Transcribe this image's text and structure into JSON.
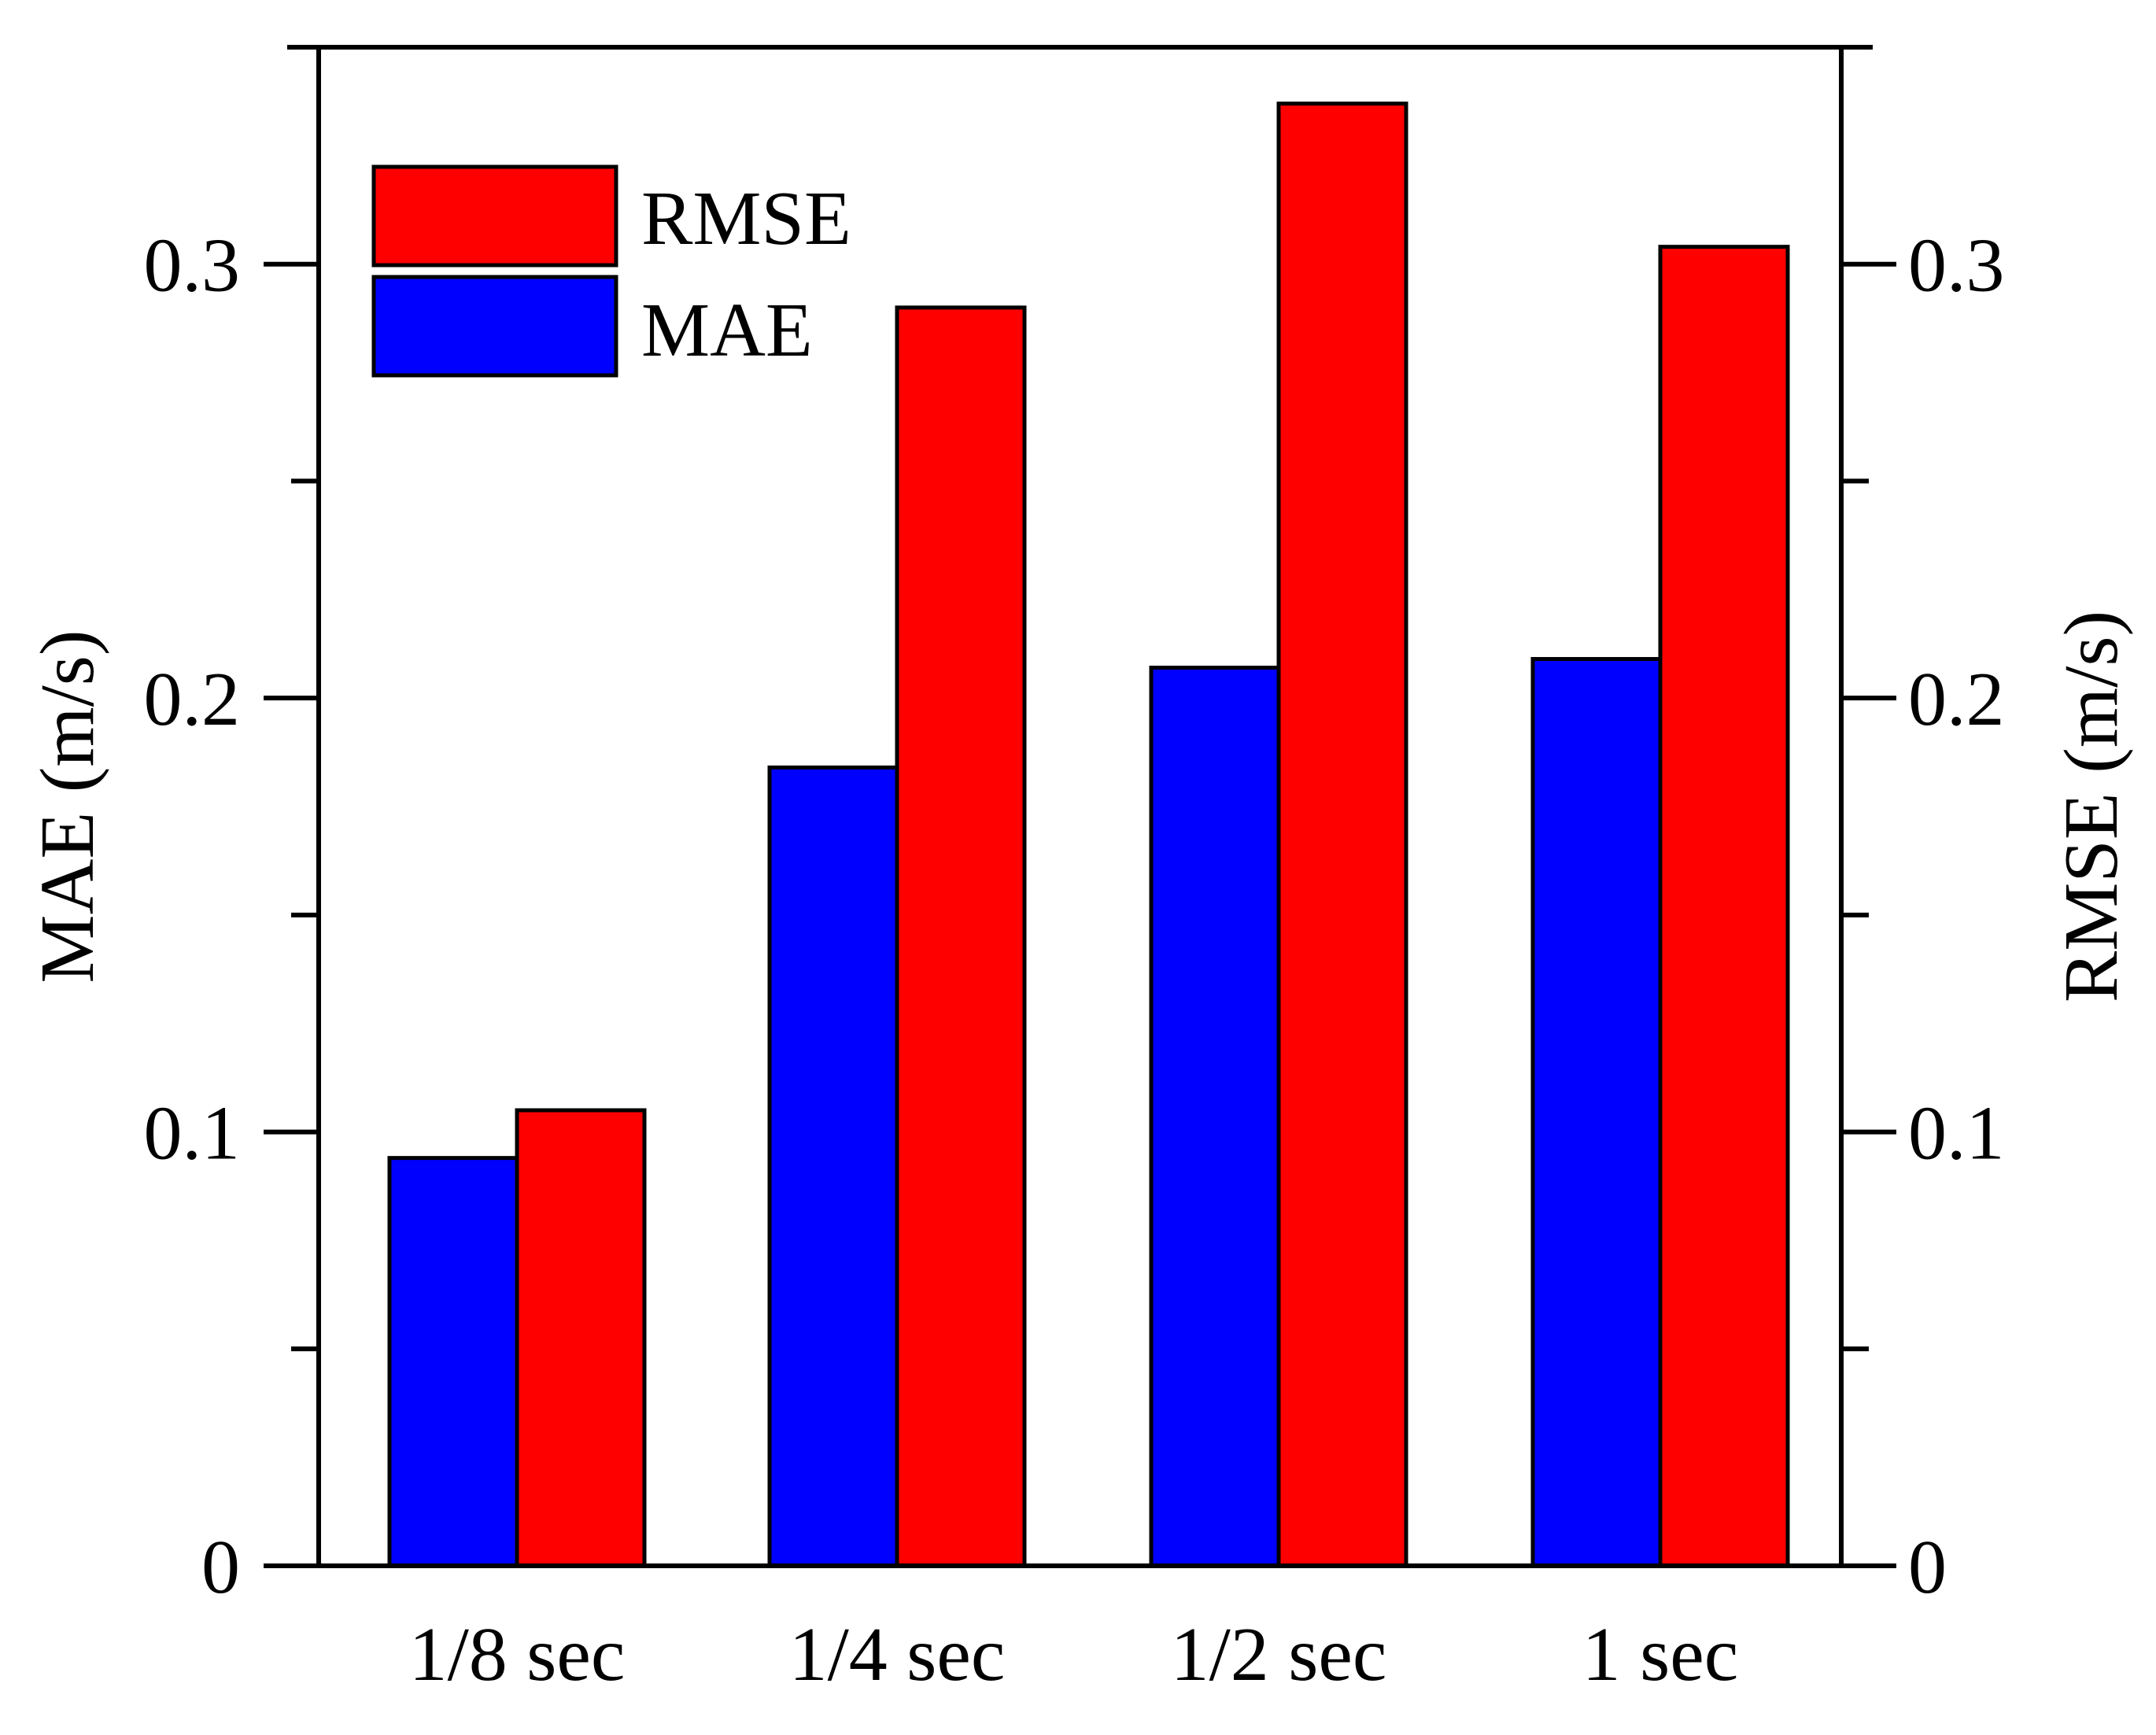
{
  "chart_data": {
    "type": "bar",
    "categories": [
      "1/8 sec",
      "1/4 sec",
      "1/2 sec",
      "1 sec"
    ],
    "series": [
      {
        "name": "MAE",
        "axis": "left",
        "color": "#0000FF",
        "values": [
          0.094,
          0.184,
          0.207,
          0.209
        ]
      },
      {
        "name": "RMSE",
        "axis": "right",
        "color": "#FF0000",
        "values": [
          0.105,
          0.29,
          0.337,
          0.304
        ]
      }
    ],
    "title": "",
    "xlabel": "",
    "ylabel_left": "MAE (m/s)",
    "ylabel_right": "RMSE (m/s)",
    "ylim": [
      0,
      0.35
    ],
    "yticks": [
      0,
      0.1,
      0.2,
      0.3
    ],
    "ytick_labels": [
      "0",
      "0.1",
      "0.2",
      "0.3"
    ],
    "yminor_ticks": [
      0.05,
      0.15,
      0.25
    ],
    "grid": false,
    "legend": {
      "position": "top-left",
      "entries": [
        {
          "label": "RMSE",
          "color": "#FF0000"
        },
        {
          "label": "MAE",
          "color": "#0000FF"
        }
      ]
    }
  }
}
